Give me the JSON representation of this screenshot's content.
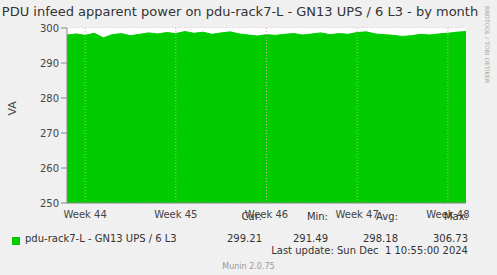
{
  "chart_data": {
    "type": "area",
    "title": "PDU infeed apparent power on pdu-rack7-L - GN13 UPS / 6 L3 - by month",
    "y_label": "VA",
    "categories": [
      null,
      null,
      "Week 44",
      null,
      null,
      null,
      null,
      null,
      null,
      null,
      null,
      null,
      "Week 45",
      null,
      null,
      null,
      null,
      null,
      null,
      null,
      null,
      null,
      "Week 46",
      null,
      null,
      null,
      null,
      null,
      null,
      null,
      null,
      null,
      "Week 47",
      null,
      null,
      null,
      null,
      null,
      null,
      null,
      null,
      null,
      "Week 48",
      null,
      null
    ],
    "series": [
      {
        "name": "pdu-rack7-L - GN13 UPS / 6 L3",
        "color": "#00cc00",
        "values": [
          298.0,
          298.3,
          297.9,
          298.5,
          297.2,
          298.1,
          298.4,
          297.8,
          298.2,
          298.6,
          298.3,
          298.7,
          298.4,
          299.0,
          298.5,
          298.8,
          298.2,
          298.6,
          298.9,
          298.3,
          298.0,
          297.7,
          298.1,
          297.9,
          298.2,
          298.4,
          298.0,
          298.3,
          298.6,
          298.1,
          298.4,
          298.2,
          298.7,
          298.9,
          298.3,
          298.1,
          297.9,
          297.6,
          297.8,
          298.2,
          298.0,
          298.3,
          298.5,
          298.8,
          299.0
        ]
      }
    ],
    "ylim": [
      250,
      300
    ],
    "yticks": [
      250,
      260,
      270,
      280,
      290,
      300
    ],
    "grid": true,
    "stat_labels": [
      "Cur:",
      "Min:",
      "Avg:",
      "Max:"
    ],
    "stat_values": [
      299.21,
      291.49,
      298.18,
      306.73
    ],
    "footer": "Last update: Sun Dec  1 10:55:00 2024",
    "credit": "Munin 2.0.75",
    "side_text": "RRDTOOL / TOBI OETIKER"
  }
}
